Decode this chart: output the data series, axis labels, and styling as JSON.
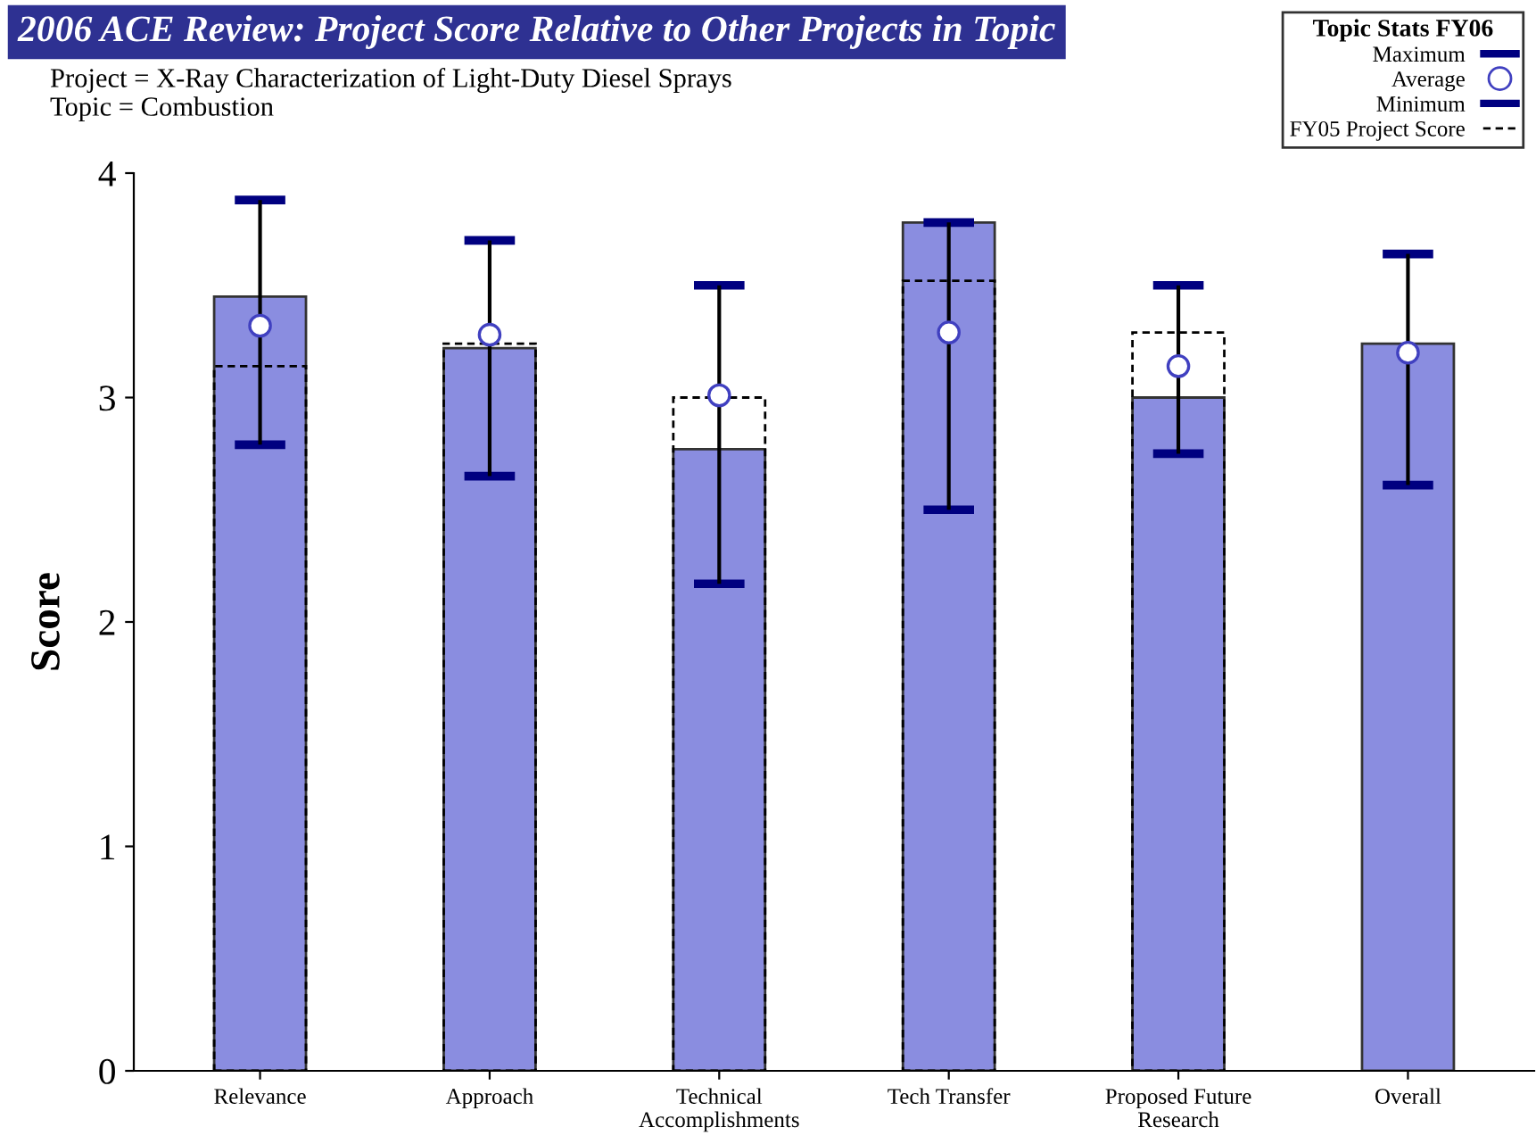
{
  "chart_data": {
    "type": "bar",
    "title": "2006 ACE Review: Project Score Relative to Other Projects in Topic",
    "subtitle": "Project = X-Ray Characterization of Light-Duty Diesel Sprays\nTopic = Combustion",
    "ylabel": "Score",
    "legend_title": "Topic Stats FY06",
    "legend": "top right",
    "grid": false,
    "annotations": [
      "Maximum",
      "Minimum"
    ],
    "categories": [
      "Relevance",
      "Approach",
      "Technical\nAccomplishments",
      "Tech Transfer",
      "Proposed Future\nResearch",
      "Overall"
    ],
    "ylim": [
      0,
      4
    ],
    "yticks": [
      0,
      1,
      2,
      3,
      4
    ],
    "series": [
      {
        "color": "#8a8de0",
        "values": [
          3.45,
          3.22,
          2.77,
          3.78,
          3.0,
          3.24
        ]
      },
      {
        "type": "bar",
        "name": "FY05 Project Score",
        "color": "#000000",
        "line_style": "dashed",
        "values": [
          3.14,
          3.24,
          3.0,
          3.52,
          3.29,
          null
        ]
      },
      {
        "type": "scatter",
        "name": "Average",
        "color": "#4040c0",
        "marker": "circle",
        "values": [
          3.32,
          3.28,
          3.01,
          3.29,
          3.14,
          3.2
        ],
        "errors": [
          [
            2.79,
            3.88
          ],
          [
            2.65,
            3.7
          ],
          [
            2.17,
            3.5
          ],
          [
            2.5,
            3.78
          ],
          [
            2.75,
            3.5
          ],
          [
            2.61,
            3.64
          ]
        ]
      }
    ]
  }
}
